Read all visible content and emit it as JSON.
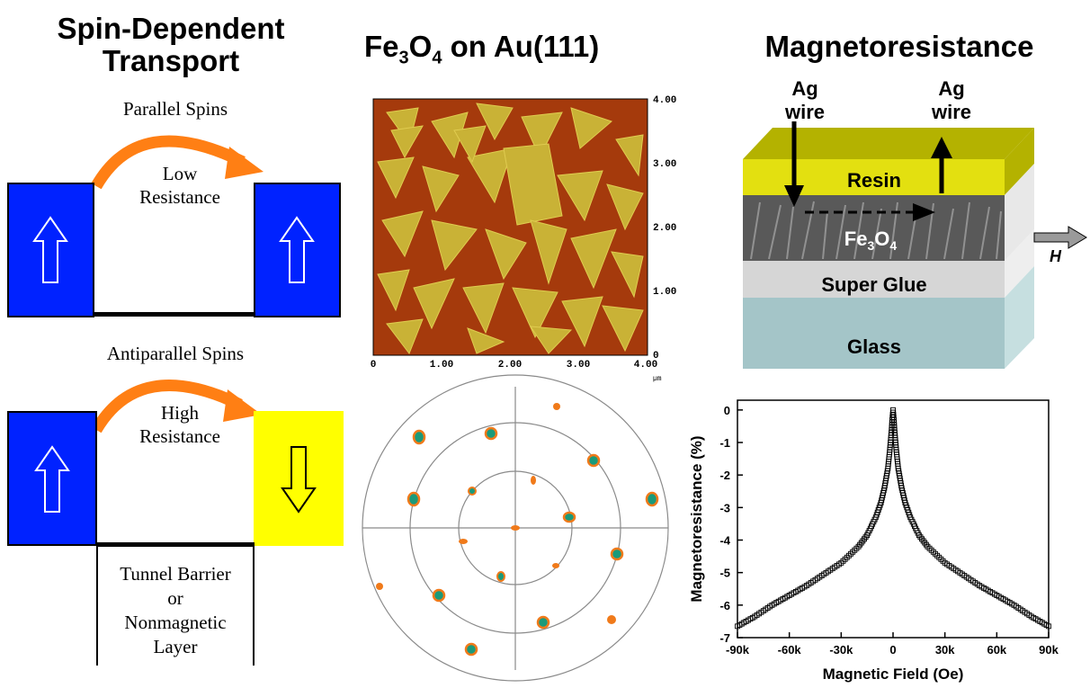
{
  "titles": {
    "spin_line1": "Spin-Dependent",
    "spin_line2": "Transport",
    "fe_prefix": "Fe",
    "fe_sub1": "3",
    "fe_mid": "O",
    "fe_sub2": "4",
    "fe_suffix": " on Au(111)",
    "mr": "Magnetoresistance"
  },
  "spin": {
    "parallel": "Parallel Spins",
    "low_line1": "Low",
    "low_line2": "Resistance",
    "antiparallel": "Antiparallel Spins",
    "high_line1": "High",
    "high_line2": "Resistance",
    "barrier_line1": "Tunnel Barrier",
    "barrier_line2": "or",
    "barrier_line3": "Nonmagnetic",
    "barrier_line4": "Layer"
  },
  "afm": {
    "x_ticks": [
      "0",
      "1.00",
      "2.00",
      "3.00",
      "4.00"
    ],
    "y_ticks": [
      "4.00",
      "3.00",
      "2.00",
      "1.00",
      "0"
    ],
    "unit": "µm"
  },
  "device": {
    "ag_left_1": "Ag",
    "ag_left_2": "wire",
    "ag_right_1": "Ag",
    "ag_right_2": "wire",
    "resin": "Resin",
    "fe_base": "Fe",
    "fe_sub1": "3",
    "fe_mid": "O",
    "fe_sub2": "4",
    "glue": "Super Glue",
    "glass": "Glass",
    "field": "H"
  },
  "colors": {
    "blue": "#0022ff",
    "yellow": "#ffff00",
    "orange": "#ff7f14",
    "resin": "#e3e010",
    "resin_top": "#b4b200",
    "glue": "#d6d6d6",
    "glass": "#a4c5c8"
  },
  "chart_data": {
    "type": "scatter",
    "xlabel": "Magnetic Field (Oe)",
    "ylabel": "Magnetoresistance (%)",
    "x_ticks": [
      "-90k",
      "-60k",
      "-30k",
      "0",
      "30k",
      "60k",
      "90k"
    ],
    "y_ticks": [
      "0",
      "-1",
      "-2",
      "-3",
      "-4",
      "-5",
      "-6",
      "-7"
    ],
    "xlim": [
      -90000,
      90000
    ],
    "ylim": [
      -7,
      0.3
    ],
    "series": [
      {
        "x": [
          -90000,
          -80000,
          -70000,
          -60000,
          -50000,
          -40000,
          -30000,
          -20000,
          -15000,
          -10000,
          -7000,
          -5000,
          -3000,
          -2000,
          -1000,
          -500,
          0,
          500,
          1000,
          2000,
          3000,
          5000,
          7000,
          10000,
          15000,
          20000,
          30000,
          40000,
          50000,
          60000,
          70000,
          80000,
          90000
        ],
        "y": [
          -6.65,
          -6.35,
          -6.0,
          -5.7,
          -5.4,
          -5.05,
          -4.7,
          -4.2,
          -3.85,
          -3.3,
          -2.85,
          -2.4,
          -1.8,
          -1.3,
          -0.7,
          -0.3,
          0.0,
          -0.3,
          -0.7,
          -1.3,
          -1.8,
          -2.4,
          -2.85,
          -3.3,
          -3.85,
          -4.2,
          -4.7,
          -5.05,
          -5.4,
          -5.7,
          -6.0,
          -6.35,
          -6.65
        ]
      }
    ]
  }
}
